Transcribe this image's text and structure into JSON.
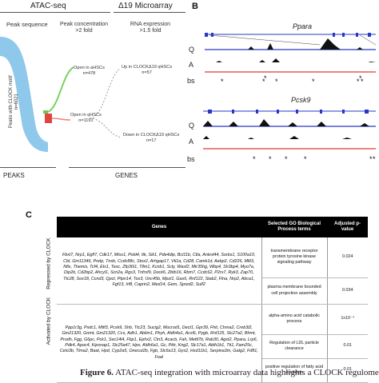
{
  "panelA": {
    "atac_header": "ATAC-seq",
    "microarray_header": "Δ19 Microarray",
    "col_peak_sequence": "Peak sequence",
    "col_peak_concentration": "Peak concentration\n>2 fold",
    "col_rna_expression": "RNA expression\n>1.5 fold",
    "peaks_label": "Peaks with CLOCK motif\nn=6021",
    "open_ahsc": "Open in aHSCs\nn=478",
    "open_qhsc": "Open in qHSCs\nn=1191",
    "up_label": "Up in CLOCKΔ19 qHSCs\nn=57",
    "down_label": "Down in CLOCKΔ19 qHSCs\nn=17",
    "footer_peaks": "PEAKS",
    "footer_genes": "GENES"
  },
  "panelB": {
    "label": "B",
    "gene1": "Ppara",
    "gene2": "Pcsk9",
    "track_q": "Q",
    "track_a": "A",
    "track_bs": "bs"
  },
  "panelC": {
    "label": "C",
    "headers": [
      "Genes",
      "Selected GO Biological Process terms",
      "Adjusted p-value"
    ],
    "group1": "Repressed by CLOCK",
    "group2": "Activated by CLOCK",
    "rows": [
      {
        "genes": "Fbxl7, Nrp1, Egfl7, Cdk17, Mtss1, Pold4, Itk, Sik1, Pde4dip, Bcl11b, Ctla, Ankrd44, Sorbs1, S100a10, Cbl, Gm11346, Prelp, Tnxb, Ccdc88c, Stox2, Arhgap17, Vti1a, Cd28, Camk1d, Aebp2, Cd226, Mllt3, Nfix, Themis, Tcf4, Ets1, Tesc, Zfp36l1, Tllm1, Kcnb1, Scly, Wasf2, Mir35hg, Wbp4, Sh3bp4, Myo7a, Dip2b, Cd2bp2, Ahcyl1, Scn2a, Rgs3, Tnfrsf9, Dock6, Zbtb16, Rbm7, Ccdc62, P2rx7, Ryk3, Zap70, Ttc28, Sox18, Ccnd3, Qpct, Ptpn14, Tox3, Unc45b, Mpzl1, Gas6, Rnf122, Stab2, Flna, Nrp2, Abca1, Fgf13, Irf8, Caprin2, Med14, Gem, Spred2, Sulf2",
        "term": "transmembrane receptor protein tyrosine kinase signaling pathway",
        "p": "0.024"
      },
      {
        "genes": "",
        "term": "plasma membrane bounded cell projection assembly",
        "p": "0.034"
      },
      {
        "genes": "Ppp1r3g, Pxdc1, Mtif3, Pcsk9, Shb, Ttc23, Sucig2, Mocrod1, Dect1, Gpr39, Fhit, Chrna2, Creb3l2, Gm21320, Gnmt, Gm21320, Ccs, Adh1, Ablim1, Phyh, Aldh4a1, Acsl6, Pygb, Rnf125, Slc27a2, Bhmt, Prodh, Fgg, G6pc, Pck1, Sec14l4, Fbp1, Ephx2, Ctn3, Acacb, Fah, Mettl7b, Rab30, Agxt2, Ppara, Lrp6, Pdk4, Apoc4, Kipsnap1, Slc25a47, Hpx, Aldh6a1, Gc, Pklr, Kng2, Slc17a1, Aldh1b1, Tti1, Fam25c, Celo3b, Tlma2, Baat, Hpd, Cyp2a5, Onecut2b, Fgb, Slc6a13, Gys2, Hsd11b1, Serpina3m, Gatg2, Fdft1, Foal",
        "term": "alpha-amino acid catabolic process",
        "p": "1x10⁻⁴"
      },
      {
        "genes": "",
        "term": "Regulation of LDL particle clearance",
        "p": "0.01"
      },
      {
        "genes": "",
        "term": "positive regulation of fatty acid oxidation",
        "p": "0.01"
      }
    ]
  },
  "caption": {
    "prefix": "Figure 6.",
    "text": "ATAC-seq integration with microarray data highlights a CLOCK regulome"
  },
  "colors": {
    "flow_blue": "#8ec8ea",
    "ahsc_green": "#6fc35a",
    "qhsc_red": "#e0463f",
    "track_blue": "#2737c8",
    "track_red": "#e23a3a"
  }
}
